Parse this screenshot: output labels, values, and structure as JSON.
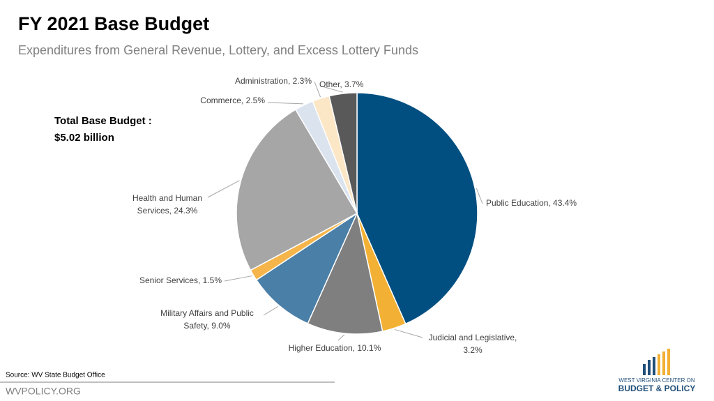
{
  "chart_data": {
    "type": "pie",
    "title": "FY 2021 Base Budget",
    "subtitle": "Expenditures from General Revenue, Lottery, and Excess Lottery Funds",
    "annotation": [
      "Total Base Budget :",
      "$5.02 billion"
    ],
    "values": [
      43.4,
      3.2,
      10.1,
      9.0,
      1.5,
      24.3,
      2.5,
      2.3,
      3.7
    ],
    "value_labels": [
      [
        "Public Education, 43.4%"
      ],
      [
        "Judicial and Legislative,",
        "3.2%"
      ],
      [
        "Higher Education, 10.1%"
      ],
      [
        "Military Affairs and Public",
        "Safety, 9.0%"
      ],
      [
        "Senior Services, 1.5%"
      ],
      [
        "Health and Human",
        "Services, 24.3%"
      ],
      [
        "Commerce, 2.5%"
      ],
      [
        "Administration, 2.3%"
      ],
      [
        "Other, 3.7%"
      ]
    ],
    "colors": [
      "#004f80",
      "#f2b134",
      "#7f7f7f",
      "#4a7fa8",
      "#f5b54a",
      "#a6a6a6",
      "#dbe3ee",
      "#fbe6c6",
      "#595959"
    ],
    "source": "Source: WV State Budget Office"
  },
  "footer": {
    "site": "WVPOLICY.ORG",
    "logo": [
      "WEST VIRGINIA CENTER ON",
      "BUDGET & POLICY"
    ]
  }
}
